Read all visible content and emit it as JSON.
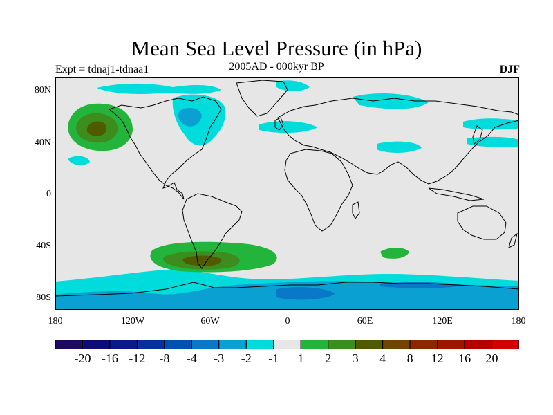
{
  "title": "Mean Sea Level Pressure (in hPa)",
  "subtitle": "2005AD - 000kyr BP",
  "experiment": "Expt = tdnaj1-tdnaa1",
  "season": "DJF",
  "lat_labels": [
    "80N",
    "40N",
    "0",
    "40S",
    "80S"
  ],
  "lon_labels": [
    "180",
    "120W",
    "60W",
    "0",
    "60E",
    "120E",
    "180"
  ],
  "colorbar": {
    "labels": [
      "-20",
      "-16",
      "-12",
      "-8",
      "-4",
      "-3",
      "-2",
      "-1",
      "1",
      "2",
      "3",
      "4",
      "8",
      "12",
      "16",
      "20"
    ],
    "colors": [
      "#1b0a5e",
      "#0c0c78",
      "#0a1a8c",
      "#0a2ea0",
      "#0050b4",
      "#0a78c8",
      "#0aa0d2",
      "#00dcdc",
      "#e6e6e6",
      "#23b43c",
      "#3c8c1e",
      "#505a00",
      "#6e4600",
      "#8c2800",
      "#a01400",
      "#b40000",
      "#d20000"
    ]
  },
  "chart_data": {
    "type": "heatmap",
    "title": "Mean Sea Level Pressure (in hPa)",
    "subtitle": "2005AD - 000kyr BP",
    "units": "hPa",
    "projection": "cylindrical equidistant",
    "lon_range": [
      -180,
      180
    ],
    "lat_range": [
      -90,
      90
    ],
    "levels": [
      -20,
      -16,
      -12,
      -8,
      -4,
      -3,
      -2,
      -1,
      1,
      2,
      3,
      4,
      8,
      12,
      16,
      20
    ],
    "anomalies": [
      {
        "region": "North Pacific / Gulf of Alaska",
        "lon": -145,
        "lat": 52,
        "max_level": 4
      },
      {
        "region": "South Pacific west of Chile",
        "lon": -70,
        "lat": -52,
        "max_level": 4
      },
      {
        "region": "South Indian Ocean",
        "lon": 80,
        "lat": -45,
        "max_level": 2
      },
      {
        "region": "Antarctic / Southern Ocean belt",
        "lat": -75,
        "min_level": -4
      },
      {
        "region": "Hudson Bay / Canada",
        "lon": -80,
        "lat": 55,
        "min_level": -2
      },
      {
        "region": "Arctic margin",
        "lat": 82,
        "min_level": -1
      }
    ]
  }
}
